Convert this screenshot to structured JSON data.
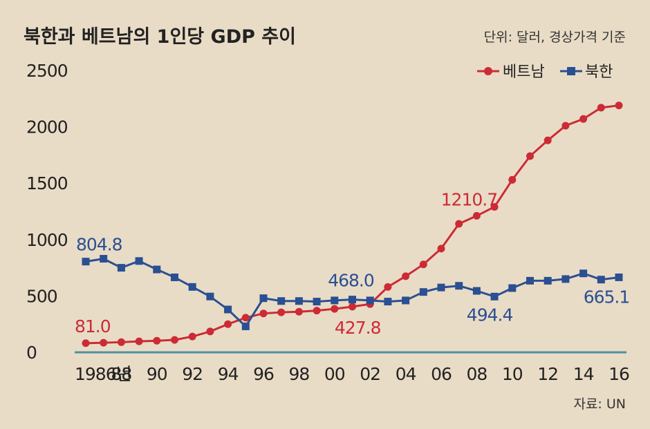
{
  "chart_data": {
    "type": "line",
    "title": "북한과 베트남의 1인당 GDP 추이",
    "unit_note": "단위: 달러, 경상가격 기준",
    "source": "자료: UN",
    "ylim": [
      0,
      2500
    ],
    "yticks": [
      "0",
      "500",
      "1000",
      "1500",
      "2000",
      "2500"
    ],
    "x": [
      1986,
      1987,
      1988,
      1989,
      1990,
      1991,
      1992,
      1993,
      1994,
      1995,
      1996,
      1997,
      1998,
      1999,
      2000,
      2001,
      2002,
      2003,
      2004,
      2005,
      2006,
      2007,
      2008,
      2009,
      2010,
      2011,
      2012,
      2013,
      2014,
      2015,
      2016
    ],
    "xticks": [
      {
        "year": 1986,
        "label": "1986년"
      },
      {
        "year": 1988,
        "label": "88"
      },
      {
        "year": 1990,
        "label": "90"
      },
      {
        "year": 1992,
        "label": "92"
      },
      {
        "year": 1994,
        "label": "94"
      },
      {
        "year": 1996,
        "label": "96"
      },
      {
        "year": 1998,
        "label": "98"
      },
      {
        "year": 2000,
        "label": "00"
      },
      {
        "year": 2002,
        "label": "02"
      },
      {
        "year": 2004,
        "label": "04"
      },
      {
        "year": 2006,
        "label": "06"
      },
      {
        "year": 2008,
        "label": "08"
      },
      {
        "year": 2010,
        "label": "10"
      },
      {
        "year": 2012,
        "label": "12"
      },
      {
        "year": 2014,
        "label": "14"
      },
      {
        "year": 2016,
        "label": "16"
      }
    ],
    "series": [
      {
        "name": "베트남",
        "color": "#cc2b36",
        "marker": "circle",
        "values": [
          81.0,
          85,
          90,
          97,
          103,
          110,
          140,
          185,
          250,
          307,
          345,
          355,
          360,
          370,
          385,
          405,
          427.8,
          580,
          675,
          780,
          920,
          1140,
          1210.7,
          1290,
          1530,
          1740,
          1880,
          2010,
          2070,
          2170,
          2190
        ]
      },
      {
        "name": "북한",
        "color": "#2a4f92",
        "marker": "square",
        "values": [
          804.8,
          830,
          750,
          810,
          735,
          665,
          580,
          495,
          380,
          230,
          480,
          455,
          455,
          450,
          460,
          468.0,
          460,
          450,
          460,
          535,
          575,
          590,
          545,
          494.4,
          570,
          635,
          635,
          650,
          700,
          645,
          665.1
        ]
      }
    ],
    "annotations": [
      {
        "series": "베트남",
        "year": 1986,
        "text": "81.0"
      },
      {
        "series": "북한",
        "year": 1986,
        "text": "804.8"
      },
      {
        "series": "북한",
        "year": 2001,
        "text": "468.0"
      },
      {
        "series": "베트남",
        "year": 2002,
        "text": "427.8"
      },
      {
        "series": "베트남",
        "year": 2008,
        "text": "1210.7"
      },
      {
        "series": "북한",
        "year": 2009,
        "text": "494.4"
      },
      {
        "series": "북한",
        "year": 2016,
        "text": "665.1"
      }
    ],
    "legend": "top-right",
    "grid": false
  }
}
